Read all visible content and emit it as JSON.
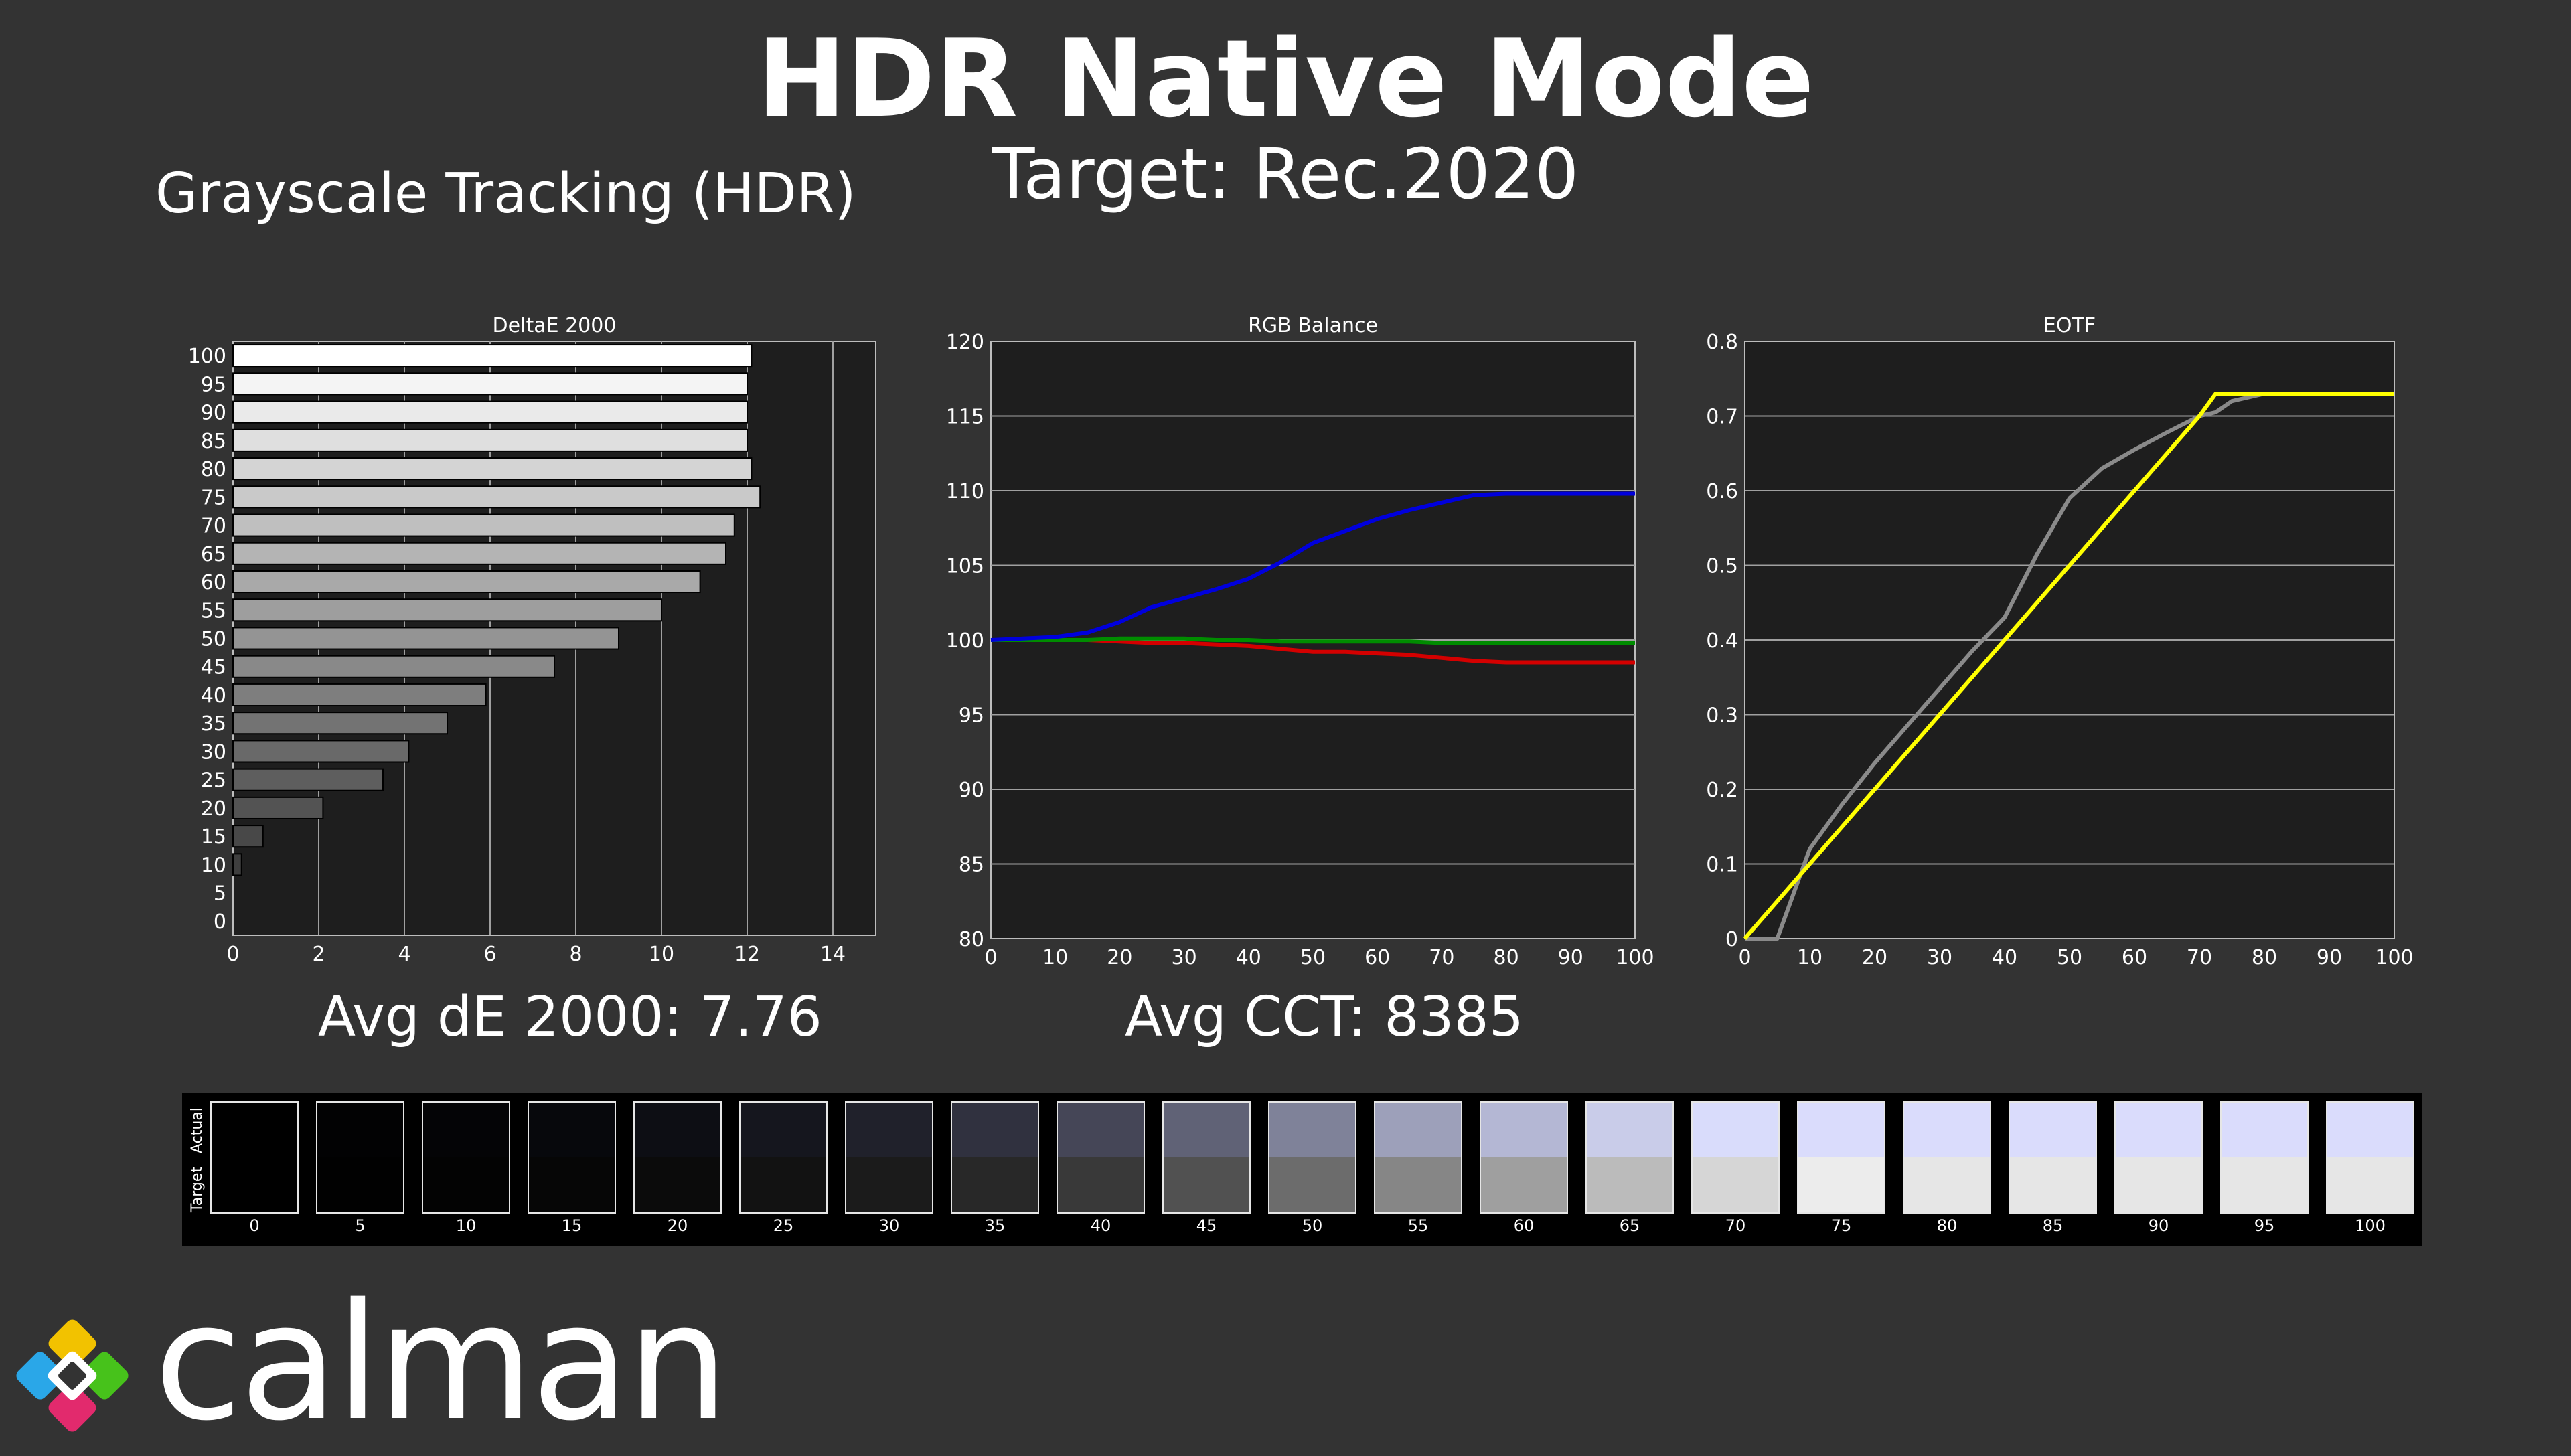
{
  "header": {
    "title": "HDR Native Mode",
    "subtitle": "Target: Rec.2020",
    "section_title": "Grayscale Tracking (HDR)"
  },
  "summary": {
    "avg_de": "Avg dE 2000: 7.76",
    "avg_cct": "Avg CCT: 8385"
  },
  "brand": {
    "name": "calman"
  },
  "colors": {
    "background": "#333333",
    "plot_bg": "#1e1e1e",
    "grid": "#a0a0a0",
    "red": "#d40000",
    "green": "#008c00",
    "blue": "#0000dd",
    "eotf_actual": "#8a8a8a",
    "eotf_target": "#ffff00"
  },
  "chart_data": [
    {
      "type": "bar",
      "orientation": "horizontal",
      "title": "DeltaE 2000",
      "categories": [
        "100",
        "95",
        "90",
        "85",
        "80",
        "75",
        "70",
        "65",
        "60",
        "55",
        "50",
        "45",
        "40",
        "35",
        "30",
        "25",
        "20",
        "15",
        "10",
        "5",
        "0"
      ],
      "values": [
        12.1,
        12.0,
        12.0,
        12.0,
        12.1,
        12.3,
        11.7,
        11.5,
        10.9,
        10.0,
        9.0,
        7.5,
        5.9,
        5.0,
        4.1,
        3.5,
        2.1,
        0.7,
        0.2,
        0.0,
        0.0
      ],
      "xlim": [
        0,
        15
      ],
      "xticks": [
        0,
        2,
        4,
        6,
        8,
        10,
        12,
        14
      ],
      "xlabel": "",
      "ylabel": "",
      "grid": true
    },
    {
      "type": "line",
      "title": "RGB Balance",
      "x": [
        0,
        5,
        10,
        15,
        20,
        25,
        30,
        35,
        40,
        45,
        50,
        55,
        60,
        65,
        70,
        75,
        80,
        85,
        90,
        95,
        100
      ],
      "series": [
        {
          "name": "",
          "color": "#d40000",
          "values": [
            100,
            100,
            100,
            100,
            99.9,
            99.8,
            99.8,
            99.7,
            99.6,
            99.4,
            99.2,
            99.2,
            99.1,
            99.0,
            98.8,
            98.6,
            98.5,
            98.5,
            98.5,
            98.5,
            98.5
          ]
        },
        {
          "name": "",
          "color": "#008c00",
          "values": [
            100,
            100,
            100,
            100,
            100.1,
            100.1,
            100.1,
            100.0,
            100.0,
            99.9,
            99.9,
            99.9,
            99.9,
            99.9,
            99.8,
            99.8,
            99.8,
            99.8,
            99.8,
            99.8,
            99.8
          ]
        },
        {
          "name": "",
          "color": "#0000dd",
          "values": [
            100,
            100.1,
            100.2,
            100.5,
            101.2,
            102.2,
            102.8,
            103.4,
            104.1,
            105.2,
            106.5,
            107.3,
            108.1,
            108.7,
            109.2,
            109.7,
            109.8,
            109.8,
            109.8,
            109.8,
            109.8
          ]
        }
      ],
      "ylim": [
        80,
        120
      ],
      "yticks": [
        80,
        85,
        90,
        95,
        100,
        105,
        110,
        115,
        120
      ],
      "xlim": [
        0,
        100
      ],
      "xticks": [
        0,
        10,
        20,
        30,
        40,
        50,
        60,
        70,
        80,
        90,
        100
      ],
      "grid": true
    },
    {
      "type": "line",
      "title": "EOTF",
      "x": [
        0,
        5,
        10,
        15,
        20,
        25,
        30,
        35,
        40,
        45,
        50,
        55,
        60,
        65,
        70,
        72.5,
        75,
        80,
        85,
        90,
        95,
        100
      ],
      "series": [
        {
          "name": "",
          "color": "#8a8a8a",
          "values": [
            0,
            0,
            0.12,
            0.18,
            0.235,
            0.285,
            0.335,
            0.385,
            0.43,
            0.515,
            0.59,
            0.63,
            0.655,
            0.678,
            0.7,
            0.705,
            0.72,
            0.73,
            0.73,
            0.73,
            0.73,
            0.73
          ]
        },
        {
          "name": "",
          "color": "#ffff00",
          "values": [
            0,
            0.05,
            0.1,
            0.15,
            0.2,
            0.25,
            0.3,
            0.35,
            0.4,
            0.45,
            0.5,
            0.55,
            0.6,
            0.65,
            0.7,
            0.73,
            0.73,
            0.73,
            0.73,
            0.73,
            0.73,
            0.73
          ]
        }
      ],
      "ylim": [
        0,
        0.8
      ],
      "yticks": [
        0,
        0.1,
        0.2,
        0.3,
        0.4,
        0.5,
        0.6,
        0.7,
        0.8
      ],
      "xlim": [
        0,
        100
      ],
      "xticks": [
        0,
        10,
        20,
        30,
        40,
        50,
        60,
        70,
        80,
        90,
        100
      ],
      "grid": true
    }
  ],
  "swatch_strip": {
    "actual_label": "Actual",
    "target_label": "Target",
    "steps": [
      {
        "label": "0",
        "actual": "#000000",
        "target": "#000000"
      },
      {
        "label": "5",
        "actual": "#020203",
        "target": "#010101"
      },
      {
        "label": "10",
        "actual": "#040406",
        "target": "#030303"
      },
      {
        "label": "15",
        "actual": "#07080c",
        "target": "#060606"
      },
      {
        "label": "20",
        "actual": "#0d0e14",
        "target": "#0b0b0b"
      },
      {
        "label": "25",
        "actual": "#15161e",
        "target": "#121212"
      },
      {
        "label": "30",
        "actual": "#20212b",
        "target": "#1b1b1b"
      },
      {
        "label": "35",
        "actual": "#30313f",
        "target": "#282828"
      },
      {
        "label": "40",
        "actual": "#454657",
        "target": "#393939"
      },
      {
        "label": "45",
        "actual": "#606276",
        "target": "#515151"
      },
      {
        "label": "50",
        "actual": "#7f8299",
        "target": "#6c6c6c"
      },
      {
        "label": "55",
        "actual": "#9da0ba",
        "target": "#868686"
      },
      {
        "label": "60",
        "actual": "#b4b7d4",
        "target": "#9f9f9f"
      },
      {
        "label": "65",
        "actual": "#c9cce9",
        "target": "#bbbbbb"
      },
      {
        "label": "70",
        "actual": "#d9dcfb",
        "target": "#d6d6d6"
      },
      {
        "label": "75",
        "actual": "#dadcfc",
        "target": "#ececec"
      },
      {
        "label": "80",
        "actual": "#dadcfc",
        "target": "#e6e6e6"
      },
      {
        "label": "85",
        "actual": "#dadcfc",
        "target": "#e6e6e6"
      },
      {
        "label": "90",
        "actual": "#dadcfc",
        "target": "#e6e6e6"
      },
      {
        "label": "95",
        "actual": "#dadcfc",
        "target": "#e6e6e6"
      },
      {
        "label": "100",
        "actual": "#dadcfc",
        "target": "#e6e6e6"
      }
    ]
  }
}
